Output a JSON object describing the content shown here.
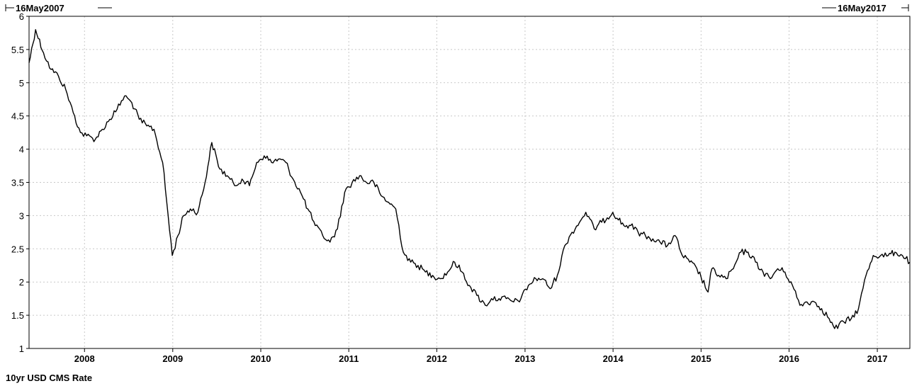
{
  "chart_data": {
    "type": "line",
    "title": "",
    "xlabel": "",
    "ylabel": "",
    "series_title": "10yr USD CMS Rate",
    "range_start_label": "16May2007",
    "range_end_label": "16May2017",
    "x_range": [
      "2007-05-16",
      "2017-05-16"
    ],
    "ylim": [
      1,
      6
    ],
    "y_ticks": [
      "1",
      "1.5",
      "2",
      "2.5",
      "3",
      "3.5",
      "4",
      "4.5",
      "5",
      "5.5",
      "6"
    ],
    "x_ticks": [
      "2008",
      "2009",
      "2010",
      "2011",
      "2012",
      "2013",
      "2014",
      "2015",
      "2016",
      "2017"
    ],
    "grid": true,
    "colors": {
      "line": "#000000",
      "grid": "#c8c8c8",
      "frame": "#000000"
    },
    "series": [
      {
        "name": "10yr USD CMS Rate",
        "x": [
          "2007-05-16",
          "2007-06-12",
          "2007-07-15",
          "2007-08-15",
          "2007-09-15",
          "2007-10-15",
          "2007-11-15",
          "2007-12-15",
          "2008-01-10",
          "2008-02-15",
          "2008-03-15",
          "2008-04-15",
          "2008-05-15",
          "2008-06-15",
          "2008-07-15",
          "2008-08-15",
          "2008-09-15",
          "2008-10-15",
          "2008-11-20",
          "2008-12-30",
          "2009-02-15",
          "2009-03-15",
          "2009-04-15",
          "2009-05-15",
          "2009-06-12",
          "2009-07-15",
          "2009-08-15",
          "2009-09-15",
          "2009-10-15",
          "2009-11-15",
          "2009-12-15",
          "2010-01-15",
          "2010-02-15",
          "2010-03-15",
          "2010-04-15",
          "2010-05-15",
          "2010-06-15",
          "2010-07-15",
          "2010-08-15",
          "2010-09-15",
          "2010-10-15",
          "2010-11-15",
          "2010-12-15",
          "2011-01-15",
          "2011-02-15",
          "2011-03-15",
          "2011-04-15",
          "2011-05-15",
          "2011-06-15",
          "2011-07-15",
          "2011-08-15",
          "2011-09-15",
          "2011-10-15",
          "2011-11-15",
          "2011-12-15",
          "2012-01-15",
          "2012-02-15",
          "2012-03-15",
          "2012-04-15",
          "2012-05-15",
          "2012-06-15",
          "2012-07-20",
          "2012-08-15",
          "2012-09-15",
          "2012-10-15",
          "2012-11-15",
          "2012-12-15",
          "2013-01-15",
          "2013-02-15",
          "2013-03-15",
          "2013-04-15",
          "2013-05-15",
          "2013-06-15",
          "2013-07-15",
          "2013-08-15",
          "2013-09-10",
          "2013-10-15",
          "2013-11-15",
          "2013-12-31",
          "2014-02-15",
          "2014-03-15",
          "2014-04-15",
          "2014-05-15",
          "2014-06-15",
          "2014-07-15",
          "2014-08-15",
          "2014-09-15",
          "2014-10-15",
          "2014-11-15",
          "2014-12-15",
          "2015-01-30",
          "2015-02-15",
          "2015-03-15",
          "2015-04-15",
          "2015-05-15",
          "2015-06-15",
          "2015-07-15",
          "2015-08-15",
          "2015-09-15",
          "2015-10-15",
          "2015-11-15",
          "2015-12-15",
          "2016-01-15",
          "2016-02-15",
          "2016-03-15",
          "2016-04-15",
          "2016-05-15",
          "2016-06-15",
          "2016-07-08",
          "2016-08-15",
          "2016-09-15",
          "2016-10-15",
          "2016-11-15",
          "2016-12-15",
          "2017-01-15",
          "2017-02-15",
          "2017-03-15",
          "2017-04-15",
          "2017-05-16"
        ],
        "y": [
          5.3,
          5.8,
          5.45,
          5.2,
          5.1,
          4.9,
          4.55,
          4.25,
          4.2,
          4.15,
          4.3,
          4.45,
          4.6,
          4.8,
          4.7,
          4.45,
          4.35,
          4.3,
          3.8,
          2.4,
          3.0,
          3.1,
          3.05,
          3.5,
          4.1,
          3.7,
          3.6,
          3.45,
          3.55,
          3.45,
          3.8,
          3.9,
          3.8,
          3.85,
          3.8,
          3.55,
          3.35,
          3.1,
          2.85,
          2.7,
          2.6,
          2.8,
          3.35,
          3.5,
          3.6,
          3.5,
          3.5,
          3.3,
          3.2,
          3.1,
          2.45,
          2.3,
          2.25,
          2.15,
          2.1,
          2.05,
          2.15,
          2.3,
          2.15,
          1.95,
          1.8,
          1.65,
          1.75,
          1.75,
          1.75,
          1.7,
          1.75,
          1.95,
          2.05,
          2.05,
          1.9,
          2.1,
          2.55,
          2.75,
          2.9,
          3.05,
          2.8,
          2.9,
          3.05,
          2.85,
          2.85,
          2.75,
          2.7,
          2.65,
          2.6,
          2.55,
          2.7,
          2.4,
          2.3,
          2.2,
          1.85,
          2.2,
          2.1,
          2.05,
          2.2,
          2.45,
          2.45,
          2.3,
          2.15,
          2.05,
          2.2,
          2.15,
          1.95,
          1.65,
          1.7,
          1.7,
          1.6,
          1.45,
          1.3,
          1.4,
          1.45,
          1.6,
          2.1,
          2.4,
          2.4,
          2.4,
          2.45,
          2.4,
          2.3
        ]
      }
    ]
  }
}
